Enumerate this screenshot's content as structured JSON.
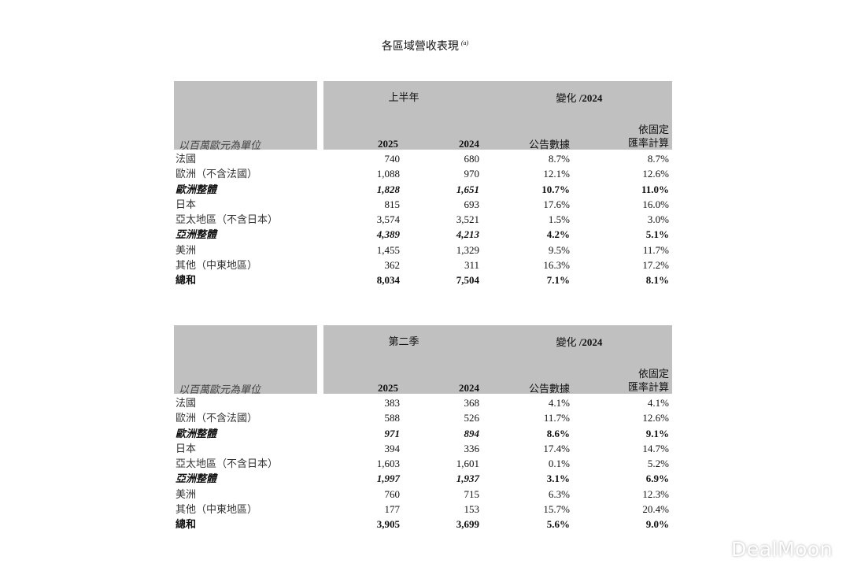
{
  "title": "各區域營收表現",
  "title_note": "(a)",
  "tables": [
    {
      "period": "上半年",
      "change_label": "變化",
      "change_year": "/2024",
      "unit": "以百萬歐元為單位",
      "col_2025": "2025",
      "col_2024": "2024",
      "col_reported": "公告數據",
      "col_constant_1": "依固定",
      "col_constant_2": "匯率計算",
      "rows": [
        {
          "label": "法國",
          "v2025": "740",
          "v2024": "680",
          "reported": "8.7%",
          "constant": "8.7%",
          "style": ""
        },
        {
          "label": "歐洲（不含法國）",
          "v2025": "1,088",
          "v2024": "970",
          "reported": "12.1%",
          "constant": "12.6%",
          "style": ""
        },
        {
          "label": "歐洲整體",
          "v2025": "1,828",
          "v2024": "1,651",
          "reported": "10.7%",
          "constant": "11.0%",
          "style": "sub"
        },
        {
          "label": "日本",
          "v2025": "815",
          "v2024": "693",
          "reported": "17.6%",
          "constant": "16.0%",
          "style": ""
        },
        {
          "label": "亞太地區（不含日本）",
          "v2025": "3,574",
          "v2024": "3,521",
          "reported": "1.5%",
          "constant": "3.0%",
          "style": ""
        },
        {
          "label": "亞洲整體",
          "v2025": "4,389",
          "v2024": "4,213",
          "reported": "4.2%",
          "constant": "5.1%",
          "style": "sub"
        },
        {
          "label": "美洲",
          "v2025": "1,455",
          "v2024": "1,329",
          "reported": "9.5%",
          "constant": "11.7%",
          "style": ""
        },
        {
          "label": "其他（中東地區）",
          "v2025": "362",
          "v2024": "311",
          "reported": "16.3%",
          "constant": "17.2%",
          "style": ""
        },
        {
          "label": "總和",
          "v2025": "8,034",
          "v2024": "7,504",
          "reported": "7.1%",
          "constant": "8.1%",
          "style": "tot"
        }
      ]
    },
    {
      "period": "第二季",
      "change_label": "變化",
      "change_year": "/2024",
      "unit": "以百萬歐元為單位",
      "col_2025": "2025",
      "col_2024": "2024",
      "col_reported": "公告數據",
      "col_constant_1": "依固定",
      "col_constant_2": "匯率計算",
      "rows": [
        {
          "label": "法國",
          "v2025": "383",
          "v2024": "368",
          "reported": "4.1%",
          "constant": "4.1%",
          "style": ""
        },
        {
          "label": "歐洲（不含法國）",
          "v2025": "588",
          "v2024": "526",
          "reported": "11.7%",
          "constant": "12.6%",
          "style": ""
        },
        {
          "label": "歐洲整體",
          "v2025": "971",
          "v2024": "894",
          "reported": "8.6%",
          "constant": "9.1%",
          "style": "sub"
        },
        {
          "label": "日本",
          "v2025": "394",
          "v2024": "336",
          "reported": "17.4%",
          "constant": "14.7%",
          "style": ""
        },
        {
          "label": "亞太地區（不含日本）",
          "v2025": "1,603",
          "v2024": "1,601",
          "reported": "0.1%",
          "constant": "5.2%",
          "style": ""
        },
        {
          "label": "亞洲整體",
          "v2025": "1,997",
          "v2024": "1,937",
          "reported": "3.1%",
          "constant": "6.9%",
          "style": "sub"
        },
        {
          "label": "美洲",
          "v2025": "760",
          "v2024": "715",
          "reported": "6.3%",
          "constant": "12.3%",
          "style": ""
        },
        {
          "label": "其他（中東地區）",
          "v2025": "177",
          "v2024": "153",
          "reported": "15.7%",
          "constant": "20.4%",
          "style": ""
        },
        {
          "label": "總和",
          "v2025": "3,905",
          "v2024": "3,699",
          "reported": "5.6%",
          "constant": "9.0%",
          "style": "tot"
        }
      ]
    }
  ],
  "watermark": "DealMoon"
}
